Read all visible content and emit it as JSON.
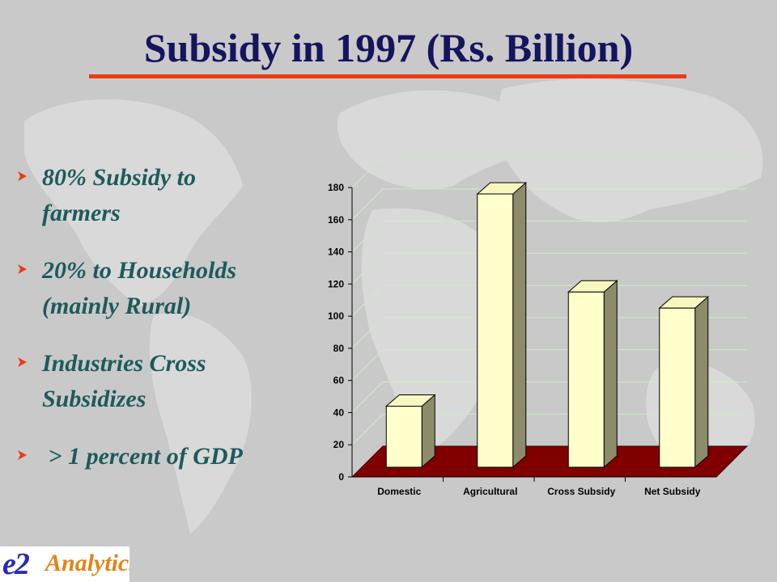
{
  "slide": {
    "title": "Subsidy in 1997 (Rs. Billion)",
    "accent_color": "#ee3a14",
    "title_color": "#14145f",
    "bullet_color": "#1e5a5a",
    "bullets": [
      {
        "line1": "80% Subsidy to",
        "line2": "farmers"
      },
      {
        "line1": "20% to Households",
        "line2": "(mainly Rural)"
      },
      {
        "line1": "Industries Cross",
        "line2": "Subsidizes"
      },
      {
        "line1": " > 1 percent of GDP",
        "line2": ""
      }
    ],
    "bullet_icon": "arrow-bullet-icon",
    "logo": {
      "mark": "e2",
      "word": "Analytics"
    }
  },
  "chart_data": {
    "type": "bar",
    "style": "3d",
    "categories": [
      "Domestic",
      "Agricultural",
      "Cross Subsidy",
      "Net Subsidy"
    ],
    "values": [
      44,
      176,
      115,
      105
    ],
    "ylim": [
      0,
      180
    ],
    "yticks": [
      0,
      20,
      40,
      60,
      80,
      100,
      120,
      140,
      160,
      180
    ],
    "title": "",
    "xlabel": "",
    "ylabel": "",
    "grid": true,
    "legend": "none",
    "colors": {
      "bar_front": "#ffffcc",
      "bar_side": "#8c8c6a",
      "bar_top": "#f7f7bf",
      "floor": "#800000",
      "grid": "#c8f0c0"
    }
  }
}
